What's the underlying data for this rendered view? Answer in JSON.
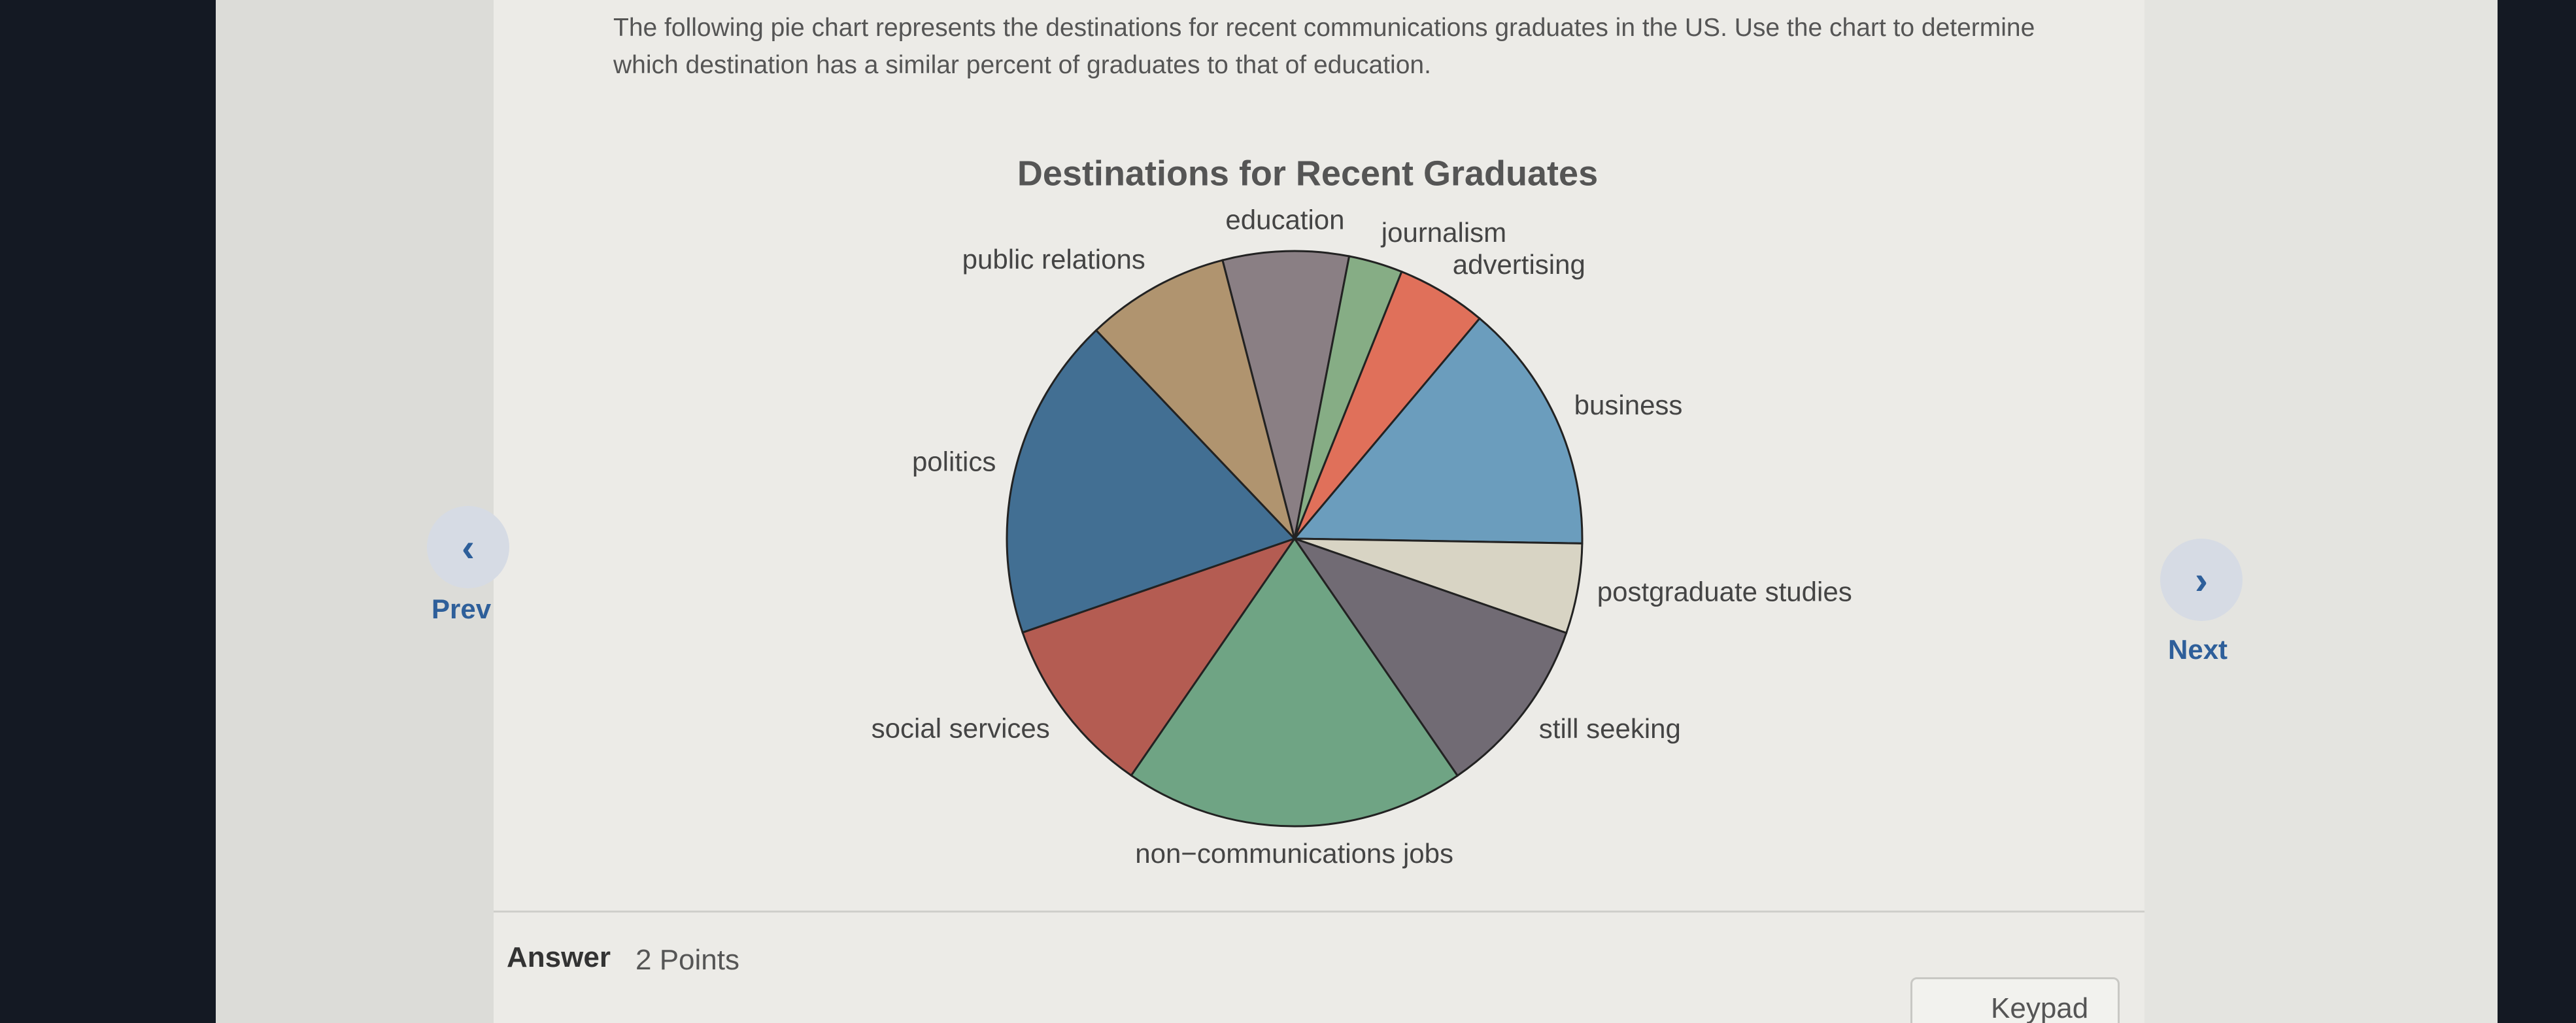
{
  "question": "The following pie chart represents the destinations for recent communications graduates in the US. Use the chart to determine which destination has a similar percent of graduates to that of education.",
  "nav": {
    "prev": "Prev",
    "next": "Next"
  },
  "answer": {
    "label": "Answer",
    "points": "2 Points"
  },
  "keypad": "Keypad",
  "chart_data": {
    "type": "pie",
    "title": "Destinations for Recent Graduates",
    "categories": [
      "education",
      "journalism",
      "advertising",
      "business",
      "postgraduate studies",
      "still seeking",
      "non−communications jobs",
      "social services",
      "politics",
      "public relations"
    ],
    "values": [
      7,
      3,
      5,
      14,
      5,
      10,
      19,
      10,
      18,
      8
    ],
    "colors": [
      "#8a7f84",
      "#86ad85",
      "#e0705a",
      "#6b9dbd",
      "#d8d4c4",
      "#716b74",
      "#6fa484",
      "#b45c52",
      "#426f93",
      "#b0946f"
    ]
  }
}
